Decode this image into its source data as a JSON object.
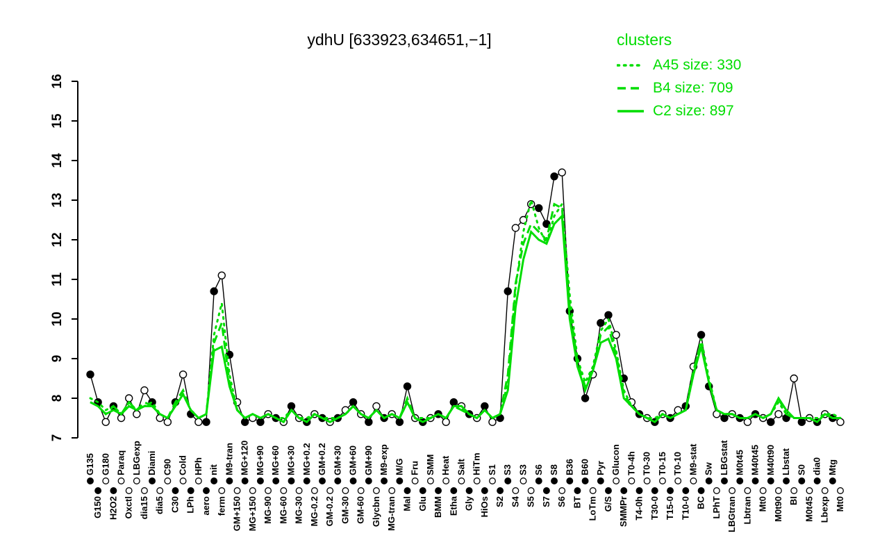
{
  "colors": {
    "cluster": "#00dd00",
    "series_black": "#000000",
    "background": "#ffffff"
  },
  "legend": {
    "title": "clusters",
    "items": [
      {
        "label": "A45 size: 330",
        "style": "dotted"
      },
      {
        "label": "B4 size: 709",
        "style": "dashed"
      },
      {
        "label": "C2 size: 897",
        "style": "solid"
      }
    ]
  },
  "chart_data": {
    "type": "line",
    "title": "ydhU [633923,634651,−1]",
    "xlabel": "",
    "ylabel": "",
    "ylim": [
      7,
      16
    ],
    "yticks": [
      7,
      8,
      9,
      10,
      11,
      12,
      13,
      14,
      15,
      16
    ],
    "grid": false,
    "legend_position": "top-right",
    "categories": [
      "G135",
      "G150",
      "G180",
      "H2O2",
      "Paraq",
      "Oxctl",
      "LBGexp",
      "dia15",
      "Diami",
      "dia5",
      "C90",
      "C30",
      "Cold",
      "LPh",
      "HPh",
      "aero",
      "nit",
      "ferm",
      "M9-tran",
      "GM+150",
      "MG+120",
      "MG+150",
      "MG+90",
      "MG-90",
      "MG+60",
      "MG-60",
      "MG+30",
      "MG-30",
      "MG+0.2",
      "MG-0.2",
      "GM+0.2",
      "GM-0.2",
      "GM+30",
      "GM-30",
      "GM+60",
      "GM-60",
      "GM+90",
      "Glycbn",
      "M9-exp",
      "MG-tran",
      "M/G",
      "Mal",
      "Fru",
      "Glu",
      "SMM",
      "BMM",
      "Heat",
      "Etha",
      "Salt",
      "Gly",
      "HiTm",
      "HiOs",
      "S1",
      "S2",
      "S3",
      "S4",
      "S3",
      "S5",
      "S6",
      "S7",
      "S8",
      "S6",
      "B36",
      "BT",
      "B60",
      "LoTm",
      "Pyr",
      "G/S",
      "Glucon",
      "SMMPr",
      "T0-4h",
      "T4-0h",
      "T0-30",
      "T30-0",
      "T0-15",
      "T15-0",
      "T0-10",
      "T10-0",
      "M9-stat",
      "BC",
      "Sw",
      "LPhT",
      "LBGstat",
      "LBGtran",
      "M0t45",
      "Lbtran",
      "M40t45",
      "Mt0",
      "M40t90",
      "M0t90",
      "Lbstat",
      "BI",
      "S0",
      "M0t45",
      "dia0",
      "Lbexp",
      "Mtg",
      "Mt0"
    ],
    "point_fills": [
      "f",
      "f",
      "o",
      "f",
      "o",
      "o",
      "o",
      "o",
      "f",
      "o",
      "o",
      "f",
      "o",
      "f",
      "o",
      "f",
      "f",
      "o",
      "f",
      "o",
      "f",
      "o",
      "f",
      "o",
      "f",
      "o",
      "f",
      "o",
      "f",
      "o",
      "f",
      "o",
      "f",
      "o",
      "f",
      "o",
      "f",
      "o",
      "f",
      "o",
      "f",
      "f",
      "o",
      "f",
      "o",
      "f",
      "o",
      "f",
      "o",
      "f",
      "o",
      "f",
      "o",
      "f",
      "f",
      "o",
      "o",
      "o",
      "f",
      "f",
      "f",
      "o",
      "f",
      "f",
      "f",
      "o",
      "f",
      "f",
      "o",
      "f",
      "o",
      "f",
      "o",
      "f",
      "o",
      "f",
      "o",
      "f",
      "o",
      "f",
      "f",
      "o",
      "f",
      "o",
      "f",
      "o",
      "f",
      "o",
      "f",
      "o",
      "f",
      "o",
      "f",
      "o",
      "f",
      "o",
      "f",
      "o"
    ],
    "series": [
      {
        "name": "ydhU",
        "color": "#000000",
        "style": "solid",
        "width": 1.4,
        "points": true,
        "values": [
          8.6,
          7.9,
          7.4,
          7.8,
          7.5,
          8.0,
          7.6,
          8.2,
          7.9,
          7.5,
          7.4,
          7.9,
          8.6,
          7.6,
          7.4,
          7.4,
          10.7,
          11.1,
          9.1,
          7.9,
          7.4,
          7.5,
          7.4,
          7.6,
          7.5,
          7.4,
          7.8,
          7.5,
          7.4,
          7.6,
          7.5,
          7.4,
          7.5,
          7.7,
          7.9,
          7.6,
          7.4,
          7.8,
          7.5,
          7.6,
          7.4,
          8.3,
          7.5,
          7.4,
          7.5,
          7.6,
          7.4,
          7.9,
          7.8,
          7.6,
          7.5,
          7.8,
          7.4,
          7.5,
          10.7,
          12.3,
          12.5,
          12.9,
          12.8,
          12.4,
          13.6,
          13.7,
          10.2,
          9.0,
          8.0,
          8.6,
          9.9,
          10.1,
          9.6,
          8.5,
          7.9,
          7.6,
          7.5,
          7.4,
          7.6,
          7.5,
          7.7,
          7.8,
          8.8,
          9.6,
          8.3,
          7.6,
          7.5,
          7.6,
          7.5,
          7.4,
          7.6,
          7.5,
          7.4,
          7.6,
          7.5,
          8.5,
          7.4,
          7.5,
          7.4,
          7.6,
          7.5,
          7.4
        ]
      },
      {
        "name": "A45 size: 330",
        "color": "#00dd00",
        "style": "dotted",
        "width": 3,
        "points": false,
        "values": [
          8.0,
          7.9,
          7.7,
          7.8,
          7.6,
          7.9,
          7.7,
          7.8,
          7.9,
          7.6,
          7.5,
          7.8,
          8.1,
          7.7,
          7.5,
          7.6,
          9.6,
          10.4,
          8.6,
          7.7,
          7.5,
          7.6,
          7.5,
          7.6,
          7.5,
          7.5,
          7.7,
          7.5,
          7.5,
          7.6,
          7.5,
          7.5,
          7.5,
          7.6,
          7.8,
          7.6,
          7.5,
          7.7,
          7.5,
          7.6,
          7.5,
          7.9,
          7.5,
          7.5,
          7.5,
          7.6,
          7.5,
          7.8,
          7.7,
          7.6,
          7.5,
          7.7,
          7.5,
          7.6,
          8.4,
          10.8,
          12.2,
          13.0,
          12.3,
          11.9,
          12.6,
          12.9,
          10.6,
          9.0,
          8.4,
          8.8,
          9.7,
          10.0,
          9.2,
          8.2,
          7.8,
          7.6,
          7.5,
          7.5,
          7.6,
          7.5,
          7.6,
          7.7,
          8.6,
          9.5,
          8.5,
          7.7,
          7.6,
          7.6,
          7.5,
          7.5,
          7.6,
          7.5,
          7.6,
          7.9,
          7.6,
          7.5,
          7.5,
          7.5,
          7.5,
          7.6,
          7.6,
          7.5
        ]
      },
      {
        "name": "B4 size: 709",
        "color": "#00dd00",
        "style": "dashed",
        "width": 3,
        "points": false,
        "values": [
          7.9,
          7.8,
          7.6,
          7.8,
          7.6,
          7.9,
          7.7,
          7.9,
          7.8,
          7.6,
          7.5,
          7.9,
          8.2,
          7.7,
          7.5,
          7.6,
          9.4,
          9.9,
          8.4,
          7.7,
          7.5,
          7.6,
          7.5,
          7.6,
          7.5,
          7.4,
          7.7,
          7.5,
          7.4,
          7.6,
          7.5,
          7.4,
          7.5,
          7.6,
          7.8,
          7.6,
          7.5,
          7.7,
          7.5,
          7.6,
          7.5,
          8.0,
          7.5,
          7.4,
          7.5,
          7.6,
          7.5,
          7.8,
          7.7,
          7.6,
          7.5,
          7.7,
          7.5,
          7.6,
          8.6,
          10.9,
          11.9,
          12.4,
          12.2,
          12.0,
          12.9,
          12.8,
          10.3,
          8.9,
          8.3,
          8.7,
          9.6,
          9.8,
          9.1,
          8.1,
          7.8,
          7.6,
          7.5,
          7.4,
          7.6,
          7.5,
          7.6,
          7.7,
          8.7,
          9.4,
          8.4,
          7.7,
          7.6,
          7.6,
          7.5,
          7.5,
          7.6,
          7.5,
          7.6,
          8.0,
          7.6,
          7.5,
          7.5,
          7.5,
          7.4,
          7.6,
          7.5,
          7.5
        ]
      },
      {
        "name": "C2 size: 897",
        "color": "#00dd00",
        "style": "solid",
        "width": 3,
        "points": false,
        "values": [
          7.9,
          7.8,
          7.6,
          7.7,
          7.6,
          7.8,
          7.7,
          7.8,
          7.8,
          7.6,
          7.5,
          7.8,
          8.1,
          7.7,
          7.5,
          7.6,
          9.2,
          9.3,
          8.3,
          7.7,
          7.5,
          7.6,
          7.5,
          7.6,
          7.5,
          7.4,
          7.7,
          7.5,
          7.4,
          7.6,
          7.5,
          7.4,
          7.5,
          7.6,
          7.8,
          7.6,
          7.5,
          7.7,
          7.5,
          7.6,
          7.5,
          7.9,
          7.5,
          7.4,
          7.5,
          7.6,
          7.5,
          7.8,
          7.8,
          7.6,
          7.5,
          7.7,
          7.5,
          7.6,
          8.2,
          10.3,
          11.5,
          12.2,
          12.0,
          11.9,
          12.4,
          12.6,
          10.0,
          8.8,
          8.2,
          8.7,
          9.4,
          9.5,
          9.0,
          8.0,
          7.8,
          7.6,
          7.5,
          7.4,
          7.6,
          7.5,
          7.6,
          7.7,
          8.6,
          9.3,
          8.4,
          7.7,
          7.6,
          7.6,
          7.5,
          7.5,
          7.6,
          7.5,
          7.6,
          8.0,
          7.7,
          7.5,
          7.5,
          7.5,
          7.4,
          7.6,
          7.5,
          7.5
        ]
      }
    ]
  }
}
